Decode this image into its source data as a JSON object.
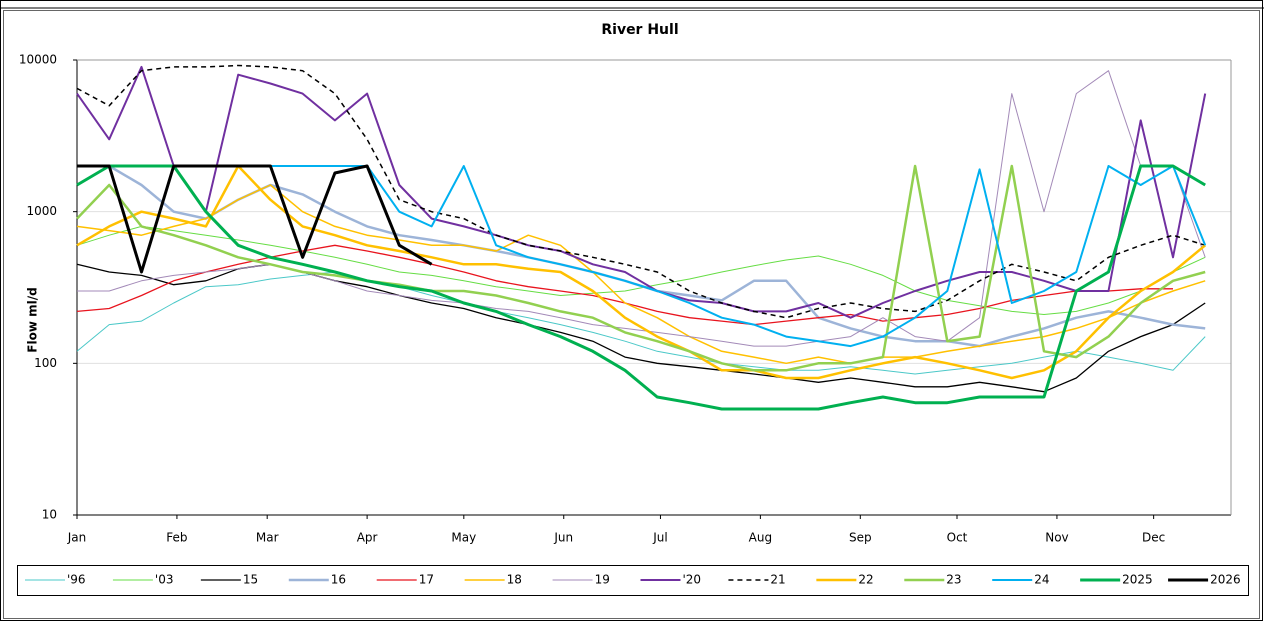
{
  "chart_data": {
    "type": "line",
    "title": "River Hull",
    "y_label": "Flow ml/d",
    "log_y": true,
    "ylim": [
      10,
      10000
    ],
    "yticks": [
      10,
      100,
      1000,
      10000
    ],
    "grid": true,
    "xlim": [
      0,
      358
    ],
    "xticks": [
      {
        "value": 0,
        "label": "Jan"
      },
      {
        "value": 31,
        "label": "Feb"
      },
      {
        "value": 59,
        "label": "Mar"
      },
      {
        "value": 90,
        "label": "Apr"
      },
      {
        "value": 120,
        "label": "May"
      },
      {
        "value": 151,
        "label": "Jun"
      },
      {
        "value": 181,
        "label": "Jul"
      },
      {
        "value": 212,
        "label": "Aug"
      },
      {
        "value": 243,
        "label": "Sep"
      },
      {
        "value": 273,
        "label": "Oct"
      },
      {
        "value": 304,
        "label": "Nov"
      },
      {
        "value": 334,
        "label": "Dec"
      }
    ],
    "x": [
      0,
      10,
      20,
      30,
      40,
      50,
      60,
      70,
      80,
      90,
      100,
      110,
      120,
      130,
      140,
      150,
      160,
      170,
      180,
      190,
      200,
      210,
      220,
      230,
      240,
      250,
      260,
      270,
      280,
      290,
      300,
      310,
      320,
      330,
      340,
      350
    ],
    "legend": "bottom",
    "series": [
      {
        "name": "'96",
        "color": "#4bc8c8",
        "line_width": 1,
        "values": [
          120,
          180,
          190,
          250,
          320,
          330,
          360,
          380,
          400,
          350,
          320,
          280,
          250,
          220,
          200,
          180,
          160,
          140,
          120,
          110,
          100,
          95,
          90,
          90,
          95,
          90,
          85,
          90,
          95,
          100,
          110,
          120,
          110,
          100,
          90,
          150
        ]
      },
      {
        "name": "'03",
        "color": "#66dd44",
        "line_width": 1,
        "values": [
          600,
          700,
          800,
          750,
          700,
          650,
          600,
          550,
          500,
          450,
          400,
          380,
          350,
          320,
          300,
          280,
          290,
          300,
          330,
          360,
          400,
          440,
          480,
          510,
          450,
          380,
          300,
          260,
          240,
          220,
          210,
          220,
          250,
          300,
          400,
          500
        ]
      },
      {
        "name": "15",
        "color": "#000000",
        "line_width": 1.3,
        "values": [
          450,
          400,
          380,
          330,
          350,
          420,
          450,
          400,
          350,
          320,
          280,
          250,
          230,
          200,
          180,
          160,
          140,
          110,
          100,
          95,
          90,
          85,
          80,
          75,
          80,
          75,
          70,
          70,
          75,
          70,
          65,
          80,
          120,
          150,
          180,
          250
        ]
      },
      {
        "name": "16",
        "color": "#9db4d8",
        "line_width": 2.5,
        "values": [
          2000,
          2000,
          1500,
          1000,
          900,
          1200,
          1500,
          1300,
          1000,
          800,
          700,
          650,
          600,
          550,
          500,
          450,
          400,
          350,
          300,
          280,
          260,
          350,
          350,
          200,
          170,
          150,
          140,
          140,
          130,
          150,
          170,
          200,
          220,
          200,
          180,
          170
        ]
      },
      {
        "name": "17",
        "color": "#e8141e",
        "line_width": 1.3,
        "values": [
          220,
          230,
          280,
          350,
          400,
          450,
          500,
          550,
          600,
          550,
          500,
          450,
          400,
          350,
          320,
          300,
          280,
          250,
          220,
          200,
          190,
          180,
          190,
          200,
          210,
          190,
          200,
          210,
          230,
          260,
          280,
          300,
          300,
          310,
          310,
          null
        ]
      },
      {
        "name": "18",
        "color": "#ffc000",
        "line_width": 1.5,
        "values": [
          800,
          750,
          700,
          800,
          900,
          1200,
          1500,
          1000,
          800,
          700,
          650,
          600,
          600,
          550,
          700,
          600,
          400,
          250,
          200,
          150,
          120,
          110,
          100,
          110,
          100,
          110,
          110,
          120,
          130,
          140,
          150,
          170,
          200,
          250,
          300,
          350
        ]
      },
      {
        "name": "19",
        "color": "#a38ab8",
        "line_width": 1,
        "values": [
          300,
          300,
          350,
          380,
          400,
          420,
          450,
          400,
          350,
          300,
          280,
          260,
          250,
          230,
          220,
          200,
          180,
          170,
          160,
          150,
          140,
          130,
          130,
          140,
          150,
          200,
          150,
          140,
          200,
          6000,
          1000,
          6000,
          8500,
          2000,
          2000,
          500
        ]
      },
      {
        "name": "'20",
        "color": "#7030a0",
        "line_width": 2,
        "values": [
          6000,
          3000,
          9000,
          2000,
          1000,
          8000,
          7000,
          6000,
          4000,
          6000,
          1500,
          900,
          800,
          700,
          600,
          550,
          450,
          400,
          300,
          260,
          250,
          220,
          220,
          250,
          200,
          250,
          300,
          350,
          400,
          400,
          350,
          300,
          300,
          4000,
          500,
          6000
        ]
      },
      {
        "name": "21",
        "color": "#000000",
        "line_width": 1.5,
        "dashed": true,
        "values": [
          6500,
          5000,
          8500,
          9000,
          9000,
          9200,
          9000,
          8500,
          6000,
          3000,
          1200,
          1000,
          900,
          700,
          600,
          550,
          500,
          450,
          400,
          300,
          250,
          220,
          200,
          230,
          250,
          230,
          220,
          260,
          350,
          450,
          400,
          350,
          500,
          600,
          700,
          600
        ]
      },
      {
        "name": "22",
        "color": "#ffc000",
        "line_width": 2.5,
        "values": [
          600,
          800,
          1000,
          900,
          800,
          2000,
          1200,
          800,
          700,
          600,
          550,
          500,
          450,
          450,
          420,
          400,
          300,
          200,
          150,
          120,
          90,
          90,
          80,
          80,
          90,
          100,
          110,
          100,
          90,
          80,
          90,
          120,
          200,
          300,
          400,
          600
        ]
      },
      {
        "name": "23",
        "color": "#92d050",
        "line_width": 2.5,
        "values": [
          900,
          1500,
          800,
          700,
          600,
          500,
          450,
          400,
          380,
          350,
          330,
          300,
          300,
          280,
          250,
          220,
          200,
          160,
          140,
          120,
          100,
          90,
          90,
          100,
          100,
          110,
          2000,
          140,
          150,
          2000,
          120,
          110,
          150,
          250,
          350,
          400
        ]
      },
      {
        "name": "24",
        "color": "#00b0f0",
        "line_width": 2,
        "values": [
          2000,
          2000,
          2000,
          2000,
          2000,
          2000,
          2000,
          2000,
          2000,
          2000,
          1000,
          800,
          2000,
          600,
          500,
          450,
          400,
          350,
          300,
          250,
          200,
          180,
          150,
          140,
          130,
          150,
          200,
          300,
          1900,
          250,
          300,
          400,
          2000,
          1500,
          2000,
          600
        ]
      },
      {
        "name": "2025",
        "color": "#00b050",
        "line_width": 3,
        "values": [
          1500,
          2000,
          2000,
          2000,
          1000,
          600,
          500,
          450,
          400,
          350,
          320,
          300,
          250,
          220,
          180,
          150,
          120,
          90,
          60,
          55,
          50,
          50,
          50,
          50,
          55,
          60,
          55,
          55,
          60,
          60,
          60,
          300,
          400,
          2000,
          2000,
          1500
        ]
      },
      {
        "name": "2026",
        "color": "#000000",
        "line_width": 3,
        "values": [
          2000,
          2000,
          400,
          2000,
          2000,
          2000,
          2000,
          500,
          1800,
          2000,
          600,
          450,
          null,
          null,
          null,
          null,
          null,
          null,
          null,
          null,
          null,
          null,
          null,
          null,
          null,
          null,
          null,
          null,
          null,
          null,
          null,
          null,
          null,
          null,
          null,
          null
        ]
      }
    ]
  }
}
